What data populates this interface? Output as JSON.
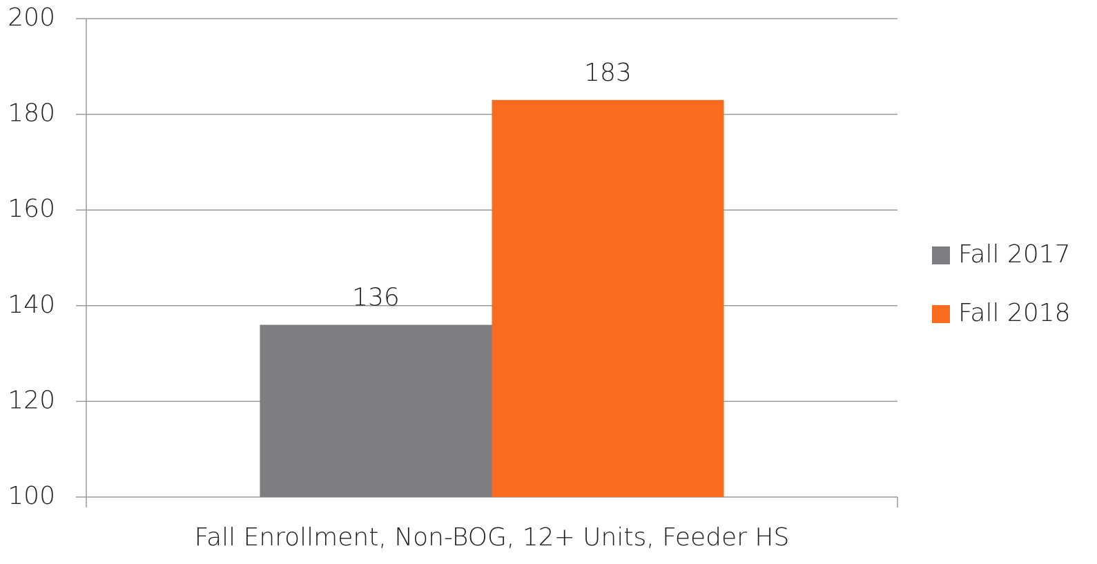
{
  "chart_data": {
    "type": "bar",
    "categories": [
      "Fall Enrollment, Non-BOG, 12+ Units, Feeder HS"
    ],
    "series": [
      {
        "name": "Fall 2017",
        "color": "#7d7e82",
        "values": [
          136
        ]
      },
      {
        "name": "Fall 2018",
        "color": "#f96b1e",
        "values": [
          183
        ]
      }
    ],
    "ylim": [
      100,
      200
    ],
    "yticks": [
      100,
      120,
      140,
      160,
      180,
      200
    ],
    "grid": true,
    "legend": "right"
  }
}
